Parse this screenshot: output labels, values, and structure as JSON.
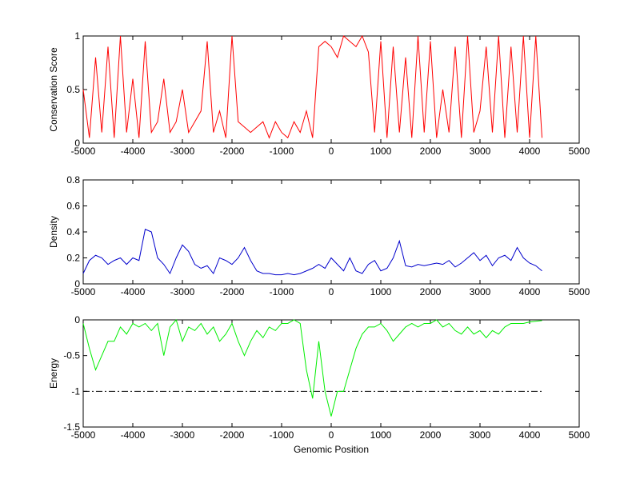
{
  "chart_data": [
    {
      "type": "line",
      "ylabel": "Conservation Score",
      "x": [
        -5000,
        -4875,
        -4750,
        -4625,
        -4500,
        -4375,
        -4250,
        -4125,
        -4000,
        -3875,
        -3750,
        -3625,
        -3500,
        -3375,
        -3250,
        -3125,
        -3000,
        -2875,
        -2750,
        -2625,
        -2500,
        -2375,
        -2250,
        -2125,
        -2000,
        -1875,
        -1750,
        -1625,
        -1500,
        -1375,
        -1250,
        -1125,
        -1000,
        -875,
        -750,
        -625,
        -500,
        -375,
        -250,
        -125,
        0,
        125,
        250,
        375,
        500,
        625,
        750,
        875,
        1000,
        1125,
        1250,
        1375,
        1500,
        1625,
        1750,
        1875,
        2000,
        2125,
        2250,
        2375,
        2500,
        2625,
        2750,
        2875,
        3000,
        3125,
        3250,
        3375,
        3500,
        3625,
        3750,
        3875,
        4000,
        4125,
        4250
      ],
      "series": [
        {
          "color": "#ff0000",
          "values": [
            0.5,
            0.05,
            0.8,
            0.1,
            0.9,
            0.05,
            1,
            0.1,
            0.6,
            0.05,
            0.95,
            0.1,
            0.2,
            0.6,
            0.1,
            0.2,
            0.5,
            0.1,
            0.2,
            0.3,
            0.95,
            0.1,
            0.3,
            0.05,
            1,
            0.2,
            0.15,
            0.1,
            0.15,
            0.2,
            0.05,
            0.2,
            0.1,
            0.05,
            0.2,
            0.1,
            0.3,
            0.05,
            0.9,
            0.95,
            0.9,
            0.8,
            1,
            0.95,
            0.9,
            1,
            0.85,
            0.1,
            0.95,
            0.05,
            0.9,
            0.1,
            0.8,
            0.05,
            1,
            0.1,
            0.95,
            0.05,
            0.5,
            0.1,
            0.9,
            0.05,
            1,
            0.1,
            0.3,
            0.9,
            0.1,
            1,
            0.05,
            0.9,
            0.1,
            1,
            0.05,
            1,
            0.05
          ]
        }
      ],
      "xlim": [
        -5000,
        5000
      ],
      "xticks": [
        -5000,
        -4000,
        -3000,
        -2000,
        -1000,
        0,
        1000,
        2000,
        3000,
        4000,
        5000
      ],
      "ylim": [
        0,
        1
      ],
      "yticks": [
        0,
        0.5,
        1
      ]
    },
    {
      "type": "line",
      "ylabel": "Density",
      "x": [
        -5000,
        -4875,
        -4750,
        -4625,
        -4500,
        -4375,
        -4250,
        -4125,
        -4000,
        -3875,
        -3750,
        -3625,
        -3500,
        -3375,
        -3250,
        -3125,
        -3000,
        -2875,
        -2750,
        -2625,
        -2500,
        -2375,
        -2250,
        -2125,
        -2000,
        -1875,
        -1750,
        -1625,
        -1500,
        -1375,
        -1250,
        -1125,
        -1000,
        -875,
        -750,
        -625,
        -500,
        -375,
        -250,
        -125,
        0,
        125,
        250,
        375,
        500,
        625,
        750,
        875,
        1000,
        1125,
        1250,
        1375,
        1500,
        1625,
        1750,
        1875,
        2000,
        2125,
        2250,
        2375,
        2500,
        2625,
        2750,
        2875,
        3000,
        3125,
        3250,
        3375,
        3500,
        3625,
        3750,
        3875,
        4000,
        4125,
        4250
      ],
      "series": [
        {
          "color": "#0000cc",
          "values": [
            0.08,
            0.18,
            0.22,
            0.2,
            0.15,
            0.18,
            0.2,
            0.15,
            0.2,
            0.18,
            0.42,
            0.4,
            0.2,
            0.15,
            0.08,
            0.2,
            0.3,
            0.25,
            0.15,
            0.12,
            0.14,
            0.08,
            0.2,
            0.18,
            0.15,
            0.2,
            0.28,
            0.18,
            0.1,
            0.08,
            0.08,
            0.07,
            0.07,
            0.08,
            0.07,
            0.08,
            0.1,
            0.12,
            0.15,
            0.12,
            0.2,
            0.15,
            0.1,
            0.2,
            0.1,
            0.08,
            0.15,
            0.18,
            0.1,
            0.12,
            0.2,
            0.33,
            0.14,
            0.13,
            0.15,
            0.14,
            0.15,
            0.16,
            0.15,
            0.18,
            0.13,
            0.16,
            0.2,
            0.24,
            0.18,
            0.22,
            0.14,
            0.2,
            0.22,
            0.18,
            0.28,
            0.2,
            0.16,
            0.14,
            0.1
          ]
        }
      ],
      "xlim": [
        -5000,
        5000
      ],
      "xticks": [
        -5000,
        -4000,
        -3000,
        -2000,
        -1000,
        0,
        1000,
        2000,
        3000,
        4000,
        5000
      ],
      "ylim": [
        0,
        0.8
      ],
      "yticks": [
        0,
        0.2,
        0.4,
        0.6,
        0.8
      ]
    },
    {
      "type": "line",
      "ylabel": "Energy",
      "xlabel": "Genomic Position",
      "x": [
        -5000,
        -4875,
        -4750,
        -4625,
        -4500,
        -4375,
        -4250,
        -4125,
        -4000,
        -3875,
        -3750,
        -3625,
        -3500,
        -3375,
        -3250,
        -3125,
        -3000,
        -2875,
        -2750,
        -2625,
        -2500,
        -2375,
        -2250,
        -2125,
        -2000,
        -1875,
        -1750,
        -1625,
        -1500,
        -1375,
        -1250,
        -1125,
        -1000,
        -875,
        -750,
        -625,
        -500,
        -375,
        -250,
        -125,
        0,
        125,
        250,
        375,
        500,
        625,
        750,
        875,
        1000,
        1125,
        1250,
        1375,
        1500,
        1625,
        1750,
        1875,
        2000,
        2125,
        2250,
        2375,
        2500,
        2625,
        2750,
        2875,
        3000,
        3125,
        3250,
        3375,
        3500,
        3625,
        3750,
        3875,
        4000,
        4125,
        4250
      ],
      "series": [
        {
          "color": "#00ee00",
          "values": [
            -0.05,
            -0.4,
            -0.7,
            -0.5,
            -0.3,
            -0.3,
            -0.1,
            -0.2,
            -0.05,
            -0.1,
            -0.05,
            -0.15,
            -0.05,
            -0.5,
            -0.1,
            0,
            -0.3,
            -0.1,
            -0.15,
            -0.05,
            -0.2,
            -0.1,
            -0.3,
            -0.2,
            -0.05,
            -0.3,
            -0.5,
            -0.3,
            -0.15,
            -0.25,
            -0.1,
            -0.15,
            -0.05,
            -0.05,
            0,
            -0.05,
            -0.7,
            -1.1,
            -0.3,
            -1.0,
            -1.35,
            -1.0,
            -1.0,
            -0.7,
            -0.4,
            -0.2,
            -0.1,
            -0.1,
            -0.05,
            -0.15,
            -0.3,
            -0.2,
            -0.1,
            -0.05,
            -0.1,
            -0.05,
            -0.05,
            0,
            -0.1,
            -0.05,
            -0.15,
            -0.2,
            -0.1,
            -0.2,
            -0.15,
            -0.25,
            -0.15,
            -0.2,
            -0.1,
            -0.05,
            -0.05,
            -0.05,
            -0.03,
            -0.02,
            -0.01
          ]
        }
      ],
      "hline": -1,
      "xlim": [
        -5000,
        5000
      ],
      "xticks": [
        -5000,
        -4000,
        -3000,
        -2000,
        -1000,
        0,
        1000,
        2000,
        3000,
        4000,
        5000
      ],
      "ylim": [
        -1.5,
        0
      ],
      "yticks": [
        -1.5,
        -1,
        -0.5,
        0
      ]
    }
  ]
}
